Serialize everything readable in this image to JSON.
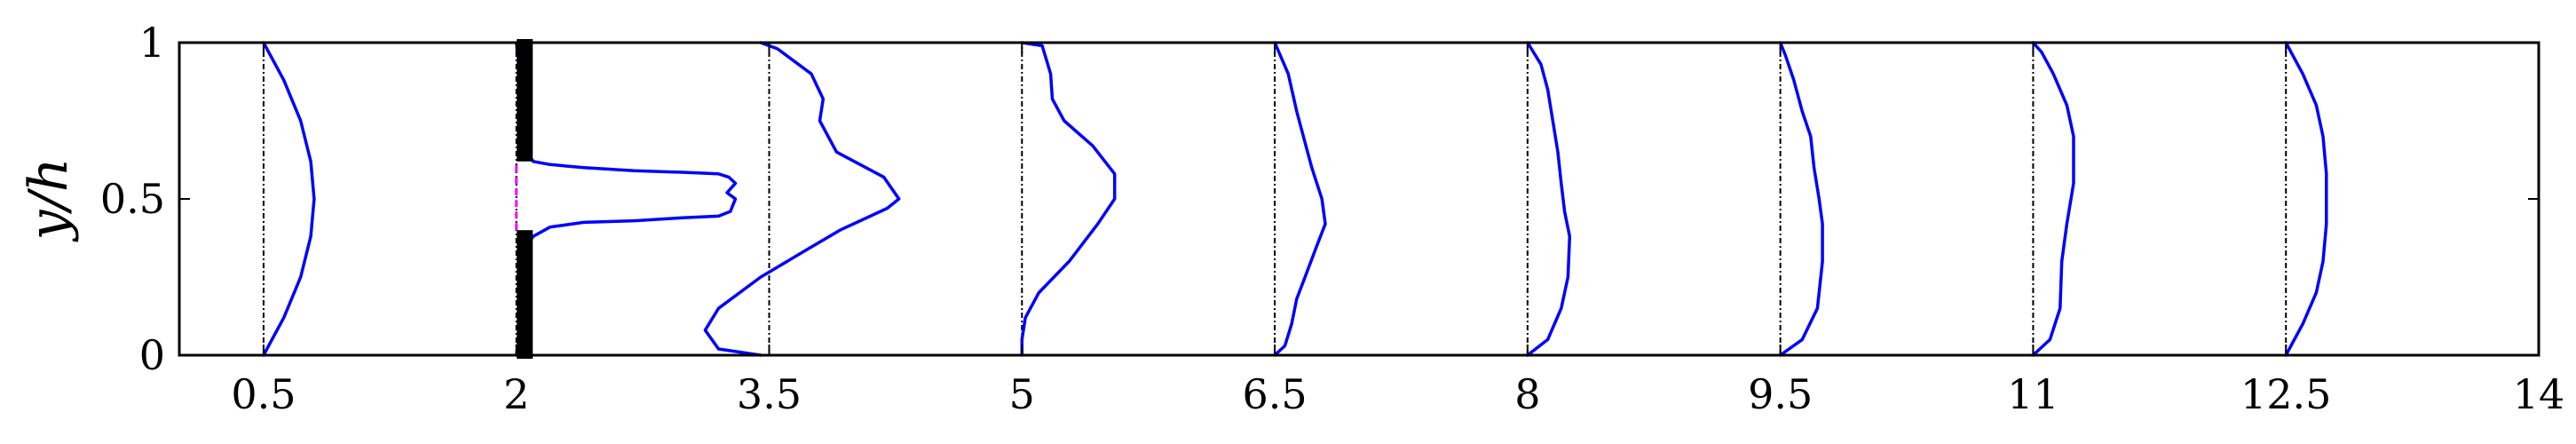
{
  "chart_data": {
    "type": "line",
    "title": "",
    "xlabel": "",
    "ylabel": "y/h",
    "xlim": [
      0,
      14
    ],
    "ylim": [
      0,
      1
    ],
    "x_ticks": [
      {
        "value": 0.5,
        "label": "0.5"
      },
      {
        "value": 2,
        "label": "2"
      },
      {
        "value": 3.5,
        "label": "3.5"
      },
      {
        "value": 5,
        "label": "5"
      },
      {
        "value": 6.5,
        "label": "6.5"
      },
      {
        "value": 8,
        "label": "8"
      },
      {
        "value": 9.5,
        "label": "9.5"
      },
      {
        "value": 11,
        "label": "11"
      },
      {
        "value": 12.5,
        "label": "12.5"
      },
      {
        "value": 14,
        "label": "14"
      }
    ],
    "y_ticks": [
      {
        "value": 0,
        "label": "0"
      },
      {
        "value": 0.5,
        "label": "0.5"
      },
      {
        "value": 1,
        "label": "1"
      }
    ],
    "grid": false,
    "legend": "none",
    "colors": {
      "profile": "#0000ff",
      "baseline": "#000000",
      "gap_line": "#ff00ff",
      "wall": "#000000"
    },
    "baselines": [
      0.5,
      2,
      3.5,
      5,
      6.5,
      8,
      9.5,
      11,
      12.5
    ],
    "profiles": [
      {
        "station": 0.5,
        "x": [
          0.5,
          0.62,
          0.72,
          0.78,
          0.8,
          0.78,
          0.72,
          0.62,
          0.5
        ],
        "y": [
          0,
          0.12,
          0.25,
          0.38,
          0.5,
          0.62,
          0.75,
          0.88,
          1
        ]
      },
      {
        "station": 2,
        "x": [
          2.0,
          2.04,
          2.05,
          2.06,
          2.1,
          2.2,
          2.4,
          2.7,
          3.0,
          3.2,
          3.27,
          3.3,
          3.25,
          3.3,
          3.26,
          3.2,
          3.0,
          2.7,
          2.4,
          2.2,
          2.1,
          2.06,
          2.05,
          2.04,
          2.0
        ],
        "y": [
          0,
          0.15,
          0.3,
          0.35,
          0.38,
          0.41,
          0.425,
          0.43,
          0.44,
          0.445,
          0.46,
          0.5,
          0.52,
          0.55,
          0.57,
          0.58,
          0.585,
          0.59,
          0.6,
          0.61,
          0.62,
          0.65,
          0.75,
          0.85,
          1
        ]
      },
      {
        "station": 3.5,
        "x": [
          3.45,
          3.2,
          3.12,
          3.2,
          3.45,
          3.7,
          3.92,
          4.2,
          4.27,
          4.18,
          3.9,
          3.8,
          3.82,
          3.75,
          3.55,
          3.45
        ],
        "y": [
          0,
          0.02,
          0.08,
          0.15,
          0.25,
          0.33,
          0.4,
          0.47,
          0.5,
          0.57,
          0.65,
          0.75,
          0.82,
          0.9,
          0.98,
          1
        ]
      },
      {
        "station": 5,
        "x": [
          5.0,
          5.0,
          5.02,
          5.1,
          5.28,
          5.45,
          5.55,
          5.55,
          5.42,
          5.25,
          5.18,
          5.17,
          5.12,
          5.0
        ],
        "y": [
          0,
          0.05,
          0.12,
          0.2,
          0.3,
          0.42,
          0.5,
          0.58,
          0.67,
          0.75,
          0.82,
          0.9,
          0.99,
          1
        ]
      },
      {
        "station": 6.5,
        "x": [
          6.5,
          6.56,
          6.6,
          6.63,
          6.68,
          6.75,
          6.8,
          6.78,
          6.72,
          6.68,
          6.63,
          6.58,
          6.5
        ],
        "y": [
          0,
          0.03,
          0.1,
          0.18,
          0.25,
          0.35,
          0.42,
          0.5,
          0.6,
          0.68,
          0.78,
          0.9,
          1
        ]
      },
      {
        "station": 8,
        "x": [
          8.0,
          8.12,
          8.2,
          8.24,
          8.25,
          8.22,
          8.2,
          8.18,
          8.15,
          8.12,
          8.08,
          8.0
        ],
        "y": [
          0,
          0.05,
          0.15,
          0.25,
          0.38,
          0.46,
          0.55,
          0.65,
          0.75,
          0.85,
          0.93,
          1
        ]
      },
      {
        "station": 9.5,
        "x": [
          9.5,
          9.63,
          9.72,
          9.75,
          9.75,
          9.73,
          9.7,
          9.68,
          9.63,
          9.58,
          9.53,
          9.5
        ],
        "y": [
          0,
          0.05,
          0.15,
          0.3,
          0.42,
          0.5,
          0.6,
          0.7,
          0.78,
          0.88,
          0.96,
          1
        ]
      },
      {
        "station": 11,
        "x": [
          11.0,
          11.1,
          11.16,
          11.17,
          11.2,
          11.24,
          11.24,
          11.2,
          11.12,
          11.05,
          11.0
        ],
        "y": [
          0,
          0.05,
          0.15,
          0.3,
          0.42,
          0.55,
          0.7,
          0.8,
          0.9,
          0.97,
          1
        ]
      },
      {
        "station": 12.5,
        "x": [
          12.5,
          12.6,
          12.68,
          12.72,
          12.74,
          12.74,
          12.72,
          12.68,
          12.6,
          12.5
        ],
        "y": [
          0,
          0.1,
          0.2,
          0.3,
          0.42,
          0.58,
          0.7,
          0.8,
          0.9,
          1
        ]
      }
    ],
    "walls": [
      {
        "x": 2.05,
        "y": [
          0,
          0.4
        ]
      },
      {
        "x": 2.05,
        "y": [
          0.62,
          1
        ]
      }
    ],
    "gap_line": {
      "x": 2.0,
      "y": [
        0.4,
        0.62
      ]
    }
  }
}
